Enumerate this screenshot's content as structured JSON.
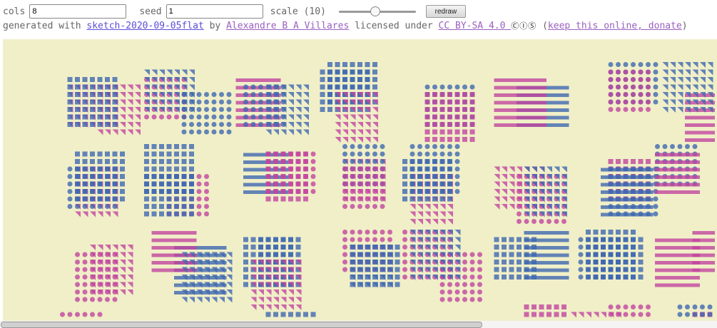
{
  "controls": {
    "cols_label": "cols",
    "cols_value": "8",
    "seed_label": "seed",
    "seed_value": "1",
    "scale_label": "scale (10)",
    "scale_value": 10,
    "redraw_label": "redraw"
  },
  "credits": {
    "prefix": "generated with",
    "sketch_link": "sketch-2020-09-05flat",
    "by": "by",
    "author_link": "Alexandre B A Villares",
    "licensed": "licensed under",
    "license_link": "CC BY-SA 4.0 ",
    "license_icons": "ⒸⒾⓈ",
    "open_paren": "(",
    "donate_link": "keep this online, donate",
    "close_paren": ")"
  },
  "canvas": {
    "background": "#f0efc8",
    "colors": [
      "#3f68b0",
      "#c2459f"
    ],
    "cols": 8
  }
}
